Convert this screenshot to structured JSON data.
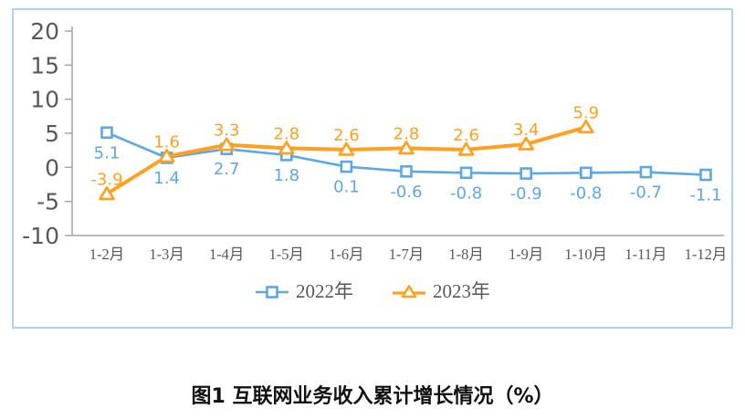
{
  "chart_data": {
    "type": "line",
    "title": "图1 互联网业务收入累计增长情况（%）",
    "categories": [
      "1-2月",
      "1-3月",
      "1-4月",
      "1-5月",
      "1-6月",
      "1-7月",
      "1-8月",
      "1-9月",
      "1-10月",
      "1-11月",
      "1-12月"
    ],
    "series": [
      {
        "name": "2022年",
        "marker": "square",
        "color": "#5ba7e8",
        "label_position": "below",
        "values": [
          5.1,
          1.4,
          2.7,
          1.8,
          0.1,
          -0.6,
          -0.8,
          -0.9,
          -0.8,
          -0.7,
          -1.1
        ]
      },
      {
        "name": "2023年",
        "marker": "triangle",
        "color": "#ffa01e",
        "label_position": "above",
        "values": [
          -3.9,
          1.6,
          3.3,
          2.8,
          2.6,
          2.8,
          2.6,
          3.4,
          5.9
        ]
      }
    ],
    "ylim": [
      -10,
      20
    ],
    "yticks": [
      20,
      15,
      10,
      5,
      0,
      -5,
      -10
    ],
    "grid": false,
    "legend_position": "bottom",
    "axis_color": "#a6a6a6",
    "tick_label_color": "#595959",
    "border_color": "#aed4f5"
  }
}
